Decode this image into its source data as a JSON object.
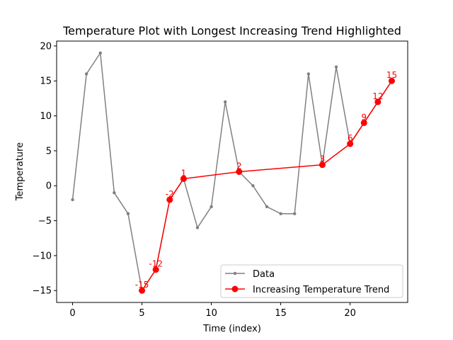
{
  "chart_data": {
    "type": "line",
    "title": "Temperature Plot with Longest Increasing Trend Highlighted",
    "xlabel": "Time (index)",
    "ylabel": "Temperature",
    "xlim": [
      -1.15,
      24.15
    ],
    "ylim": [
      -16.7,
      20.7
    ],
    "x_ticks": [
      0,
      5,
      10,
      15,
      20
    ],
    "y_ticks": [
      -15,
      -10,
      -5,
      0,
      5,
      10,
      15,
      20
    ],
    "grid": false,
    "legend_position": "lower-right",
    "series": [
      {
        "name": "Data",
        "color": "#808080",
        "marker": "small-dot",
        "x": [
          0,
          1,
          2,
          3,
          4,
          5,
          6,
          7,
          8,
          9,
          10,
          11,
          12,
          13,
          14,
          15,
          16,
          17,
          18,
          19,
          20,
          21,
          22,
          23
        ],
        "y": [
          -2,
          16,
          19,
          -1,
          -4,
          -15,
          -12,
          -2,
          1,
          -6,
          -3,
          12,
          2,
          0,
          -3,
          -4,
          -4,
          16,
          3,
          17,
          6,
          9,
          12,
          15
        ]
      },
      {
        "name": "Increasing Temperature Trend",
        "color": "#ff0000",
        "marker": "large-dot",
        "x": [
          5,
          6,
          7,
          8,
          12,
          18,
          20,
          21,
          22,
          23
        ],
        "y": [
          -15,
          -12,
          -2,
          1,
          2,
          3,
          6,
          9,
          12,
          15
        ],
        "labels": [
          "-15",
          "-12",
          "-2",
          "1",
          "2",
          "3",
          "6",
          "9",
          "12",
          "15"
        ]
      }
    ]
  }
}
